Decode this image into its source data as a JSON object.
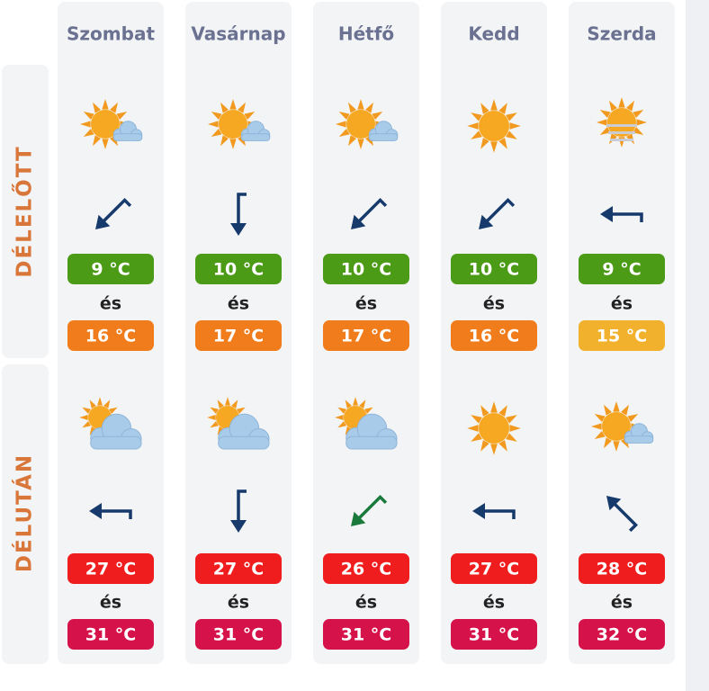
{
  "periods": [
    "DÉLELŐTT",
    "DÉLUTÁN"
  ],
  "conjunction": "és",
  "days": [
    {
      "name": "Szombat",
      "morning": {
        "min": {
          "label": "9 °C",
          "color": "#4b9b17"
        },
        "max": {
          "label": "16 °C",
          "color": "#f07c1b"
        }
      },
      "afternoon": {
        "min": {
          "label": "27 °C",
          "color": "#ef1d1d"
        },
        "max": {
          "label": "31 °C",
          "color": "#d6124b"
        }
      }
    },
    {
      "name": "Vasárnap",
      "morning": {
        "min": {
          "label": "10 °C",
          "color": "#4b9b17"
        },
        "max": {
          "label": "17 °C",
          "color": "#f07c1b"
        }
      },
      "afternoon": {
        "min": {
          "label": "27 °C",
          "color": "#ef1d1d"
        },
        "max": {
          "label": "31 °C",
          "color": "#d6124b"
        }
      }
    },
    {
      "name": "Hétfő",
      "morning": {
        "min": {
          "label": "10 °C",
          "color": "#4b9b17"
        },
        "max": {
          "label": "17 °C",
          "color": "#f07c1b"
        }
      },
      "afternoon": {
        "min": {
          "label": "26 °C",
          "color": "#ef1d1d"
        },
        "max": {
          "label": "31 °C",
          "color": "#d6124b"
        }
      }
    },
    {
      "name": "Kedd",
      "morning": {
        "min": {
          "label": "10 °C",
          "color": "#4b9b17"
        },
        "max": {
          "label": "16 °C",
          "color": "#f07c1b"
        }
      },
      "afternoon": {
        "min": {
          "label": "27 °C",
          "color": "#ef1d1d"
        },
        "max": {
          "label": "31 °C",
          "color": "#d6124b"
        }
      }
    },
    {
      "name": "Szerda",
      "morning": {
        "min": {
          "label": "9 °C",
          "color": "#4b9b17"
        },
        "max": {
          "label": "15 °C",
          "color": "#f2b12c"
        }
      },
      "afternoon": {
        "min": {
          "label": "28 °C",
          "color": "#ef1d1d"
        },
        "max": {
          "label": "32 °C",
          "color": "#d6124b"
        }
      }
    }
  ]
}
